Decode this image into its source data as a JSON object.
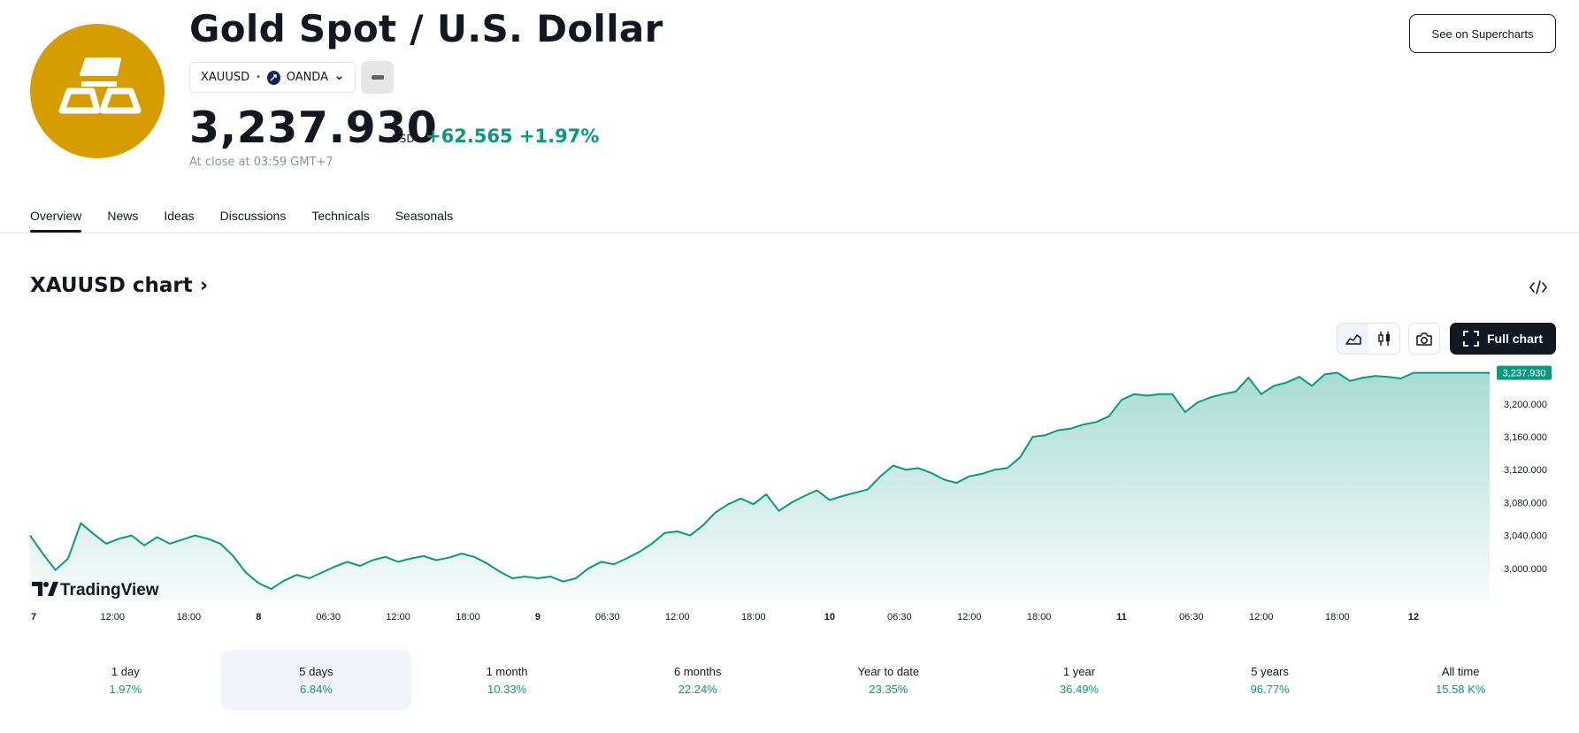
{
  "header": {
    "title": "Gold Spot / U.S. Dollar",
    "symbol": "XAUUSD",
    "exchange": "OANDA",
    "price": "3,237.930",
    "currency": "USD",
    "change_abs": "+62.565",
    "change_pct": "+1.97%",
    "close_note": "At close at 03:59 GMT+7",
    "supercharts_label": "See on Supercharts",
    "logo_color": "#D79C00"
  },
  "tabs": [
    {
      "label": "Overview",
      "active": true
    },
    {
      "label": "News"
    },
    {
      "label": "Ideas"
    },
    {
      "label": "Discussions"
    },
    {
      "label": "Technicals"
    },
    {
      "label": "Seasonals"
    }
  ],
  "chart_section": {
    "heading": "XAUUSD chart",
    "full_chart_label": "Full chart",
    "watermark": "TradingView"
  },
  "chart_data": {
    "type": "area",
    "line_color": "#089981",
    "last_value_label": "3,237.930",
    "last_value": 3237.93,
    "y_ticks": [
      "3,200.000",
      "3,160.000",
      "3,120.000",
      "3,080.000",
      "3,040.000",
      "3,000.000"
    ],
    "y_tick_values": [
      3200,
      3160,
      3120,
      3080,
      3040,
      3000
    ],
    "x_ticks": [
      "7",
      "12:00",
      "18:00",
      "8",
      "06:30",
      "12:00",
      "18:00",
      "9",
      "06:30",
      "12:00",
      "18:00",
      "10",
      "06:30",
      "12:00",
      "18:00",
      "11",
      "06:30",
      "12:00",
      "18:00",
      "12"
    ],
    "x_tick_pos": [
      0,
      1.3,
      2.5,
      3.6,
      4.7,
      5.8,
      6.9,
      8.0,
      9.1,
      10.2,
      11.4,
      12.6,
      13.7,
      14.8,
      15.9,
      17.2,
      18.3,
      19.4,
      20.6,
      21.8
    ],
    "x_range": [
      0,
      23.0
    ],
    "ylim": [
      2960,
      3245
    ],
    "x": [
      0,
      0.2,
      0.4,
      0.6,
      0.8,
      1.0,
      1.2,
      1.4,
      1.6,
      1.8,
      2.0,
      2.2,
      2.4,
      2.6,
      2.8,
      3.0,
      3.2,
      3.4,
      3.6,
      3.8,
      4.0,
      4.2,
      4.4,
      4.6,
      4.8,
      5.0,
      5.2,
      5.4,
      5.6,
      5.8,
      6.0,
      6.2,
      6.4,
      6.6,
      6.8,
      7.0,
      7.2,
      7.4,
      7.6,
      7.8,
      8.0,
      8.2,
      8.4,
      8.6,
      8.8,
      9.0,
      9.2,
      9.4,
      9.6,
      9.8,
      10.0,
      10.2,
      10.4,
      10.6,
      10.8,
      11.0,
      11.2,
      11.4,
      11.6,
      11.8,
      12.0,
      12.2,
      12.4,
      12.6,
      12.8,
      13.0,
      13.2,
      13.4,
      13.6,
      13.8,
      14.0,
      14.2,
      14.4,
      14.6,
      14.8,
      15.0,
      15.2,
      15.4,
      15.6,
      15.8,
      16.0,
      16.2,
      16.4,
      16.6,
      16.8,
      17.0,
      17.2,
      17.4,
      17.6,
      17.8,
      18.0,
      18.2,
      18.4,
      18.6,
      18.8,
      19.0,
      19.2,
      19.4,
      19.6,
      19.8,
      20.0,
      20.2,
      20.4,
      20.6,
      20.8,
      21.0,
      21.2,
      21.4,
      21.6,
      21.8,
      22.0,
      22.2,
      22.4,
      22.6,
      22.8,
      23.0
    ],
    "y": [
      3040,
      3018,
      2998,
      3012,
      3055,
      3042,
      3030,
      3036,
      3040,
      3028,
      3038,
      3030,
      3035,
      3040,
      3036,
      3030,
      3015,
      2995,
      2982,
      2975,
      2985,
      2992,
      2988,
      2995,
      3002,
      3008,
      3003,
      3010,
      3014,
      3008,
      3012,
      3015,
      3010,
      3013,
      3018,
      3014,
      3006,
      2996,
      2988,
      2990,
      2988,
      2990,
      2984,
      2988,
      3000,
      3008,
      3005,
      3012,
      3020,
      3030,
      3043,
      3045,
      3040,
      3052,
      3068,
      3078,
      3085,
      3078,
      3090,
      3070,
      3080,
      3088,
      3095,
      3083,
      3088,
      3092,
      3096,
      3112,
      3125,
      3120,
      3122,
      3116,
      3108,
      3104,
      3112,
      3115,
      3120,
      3122,
      3135,
      3160,
      3162,
      3168,
      3170,
      3175,
      3178,
      3185,
      3205,
      3212,
      3210,
      3212,
      3212,
      3190,
      3202,
      3208,
      3212,
      3215,
      3232,
      3212,
      3222,
      3226,
      3233,
      3222,
      3236,
      3238,
      3228,
      3232,
      3234,
      3233,
      3231,
      3237.93,
      3237.93,
      3237.93,
      3237.93,
      3237.93,
      3237.93,
      3237.93
    ]
  },
  "periods": [
    {
      "label": "1 day",
      "value": "1.97%"
    },
    {
      "label": "5 days",
      "value": "6.84%",
      "active": true
    },
    {
      "label": "1 month",
      "value": "10.33%"
    },
    {
      "label": "6 months",
      "value": "22.24%"
    },
    {
      "label": "Year to date",
      "value": "23.35%"
    },
    {
      "label": "1 year",
      "value": "36.49%"
    },
    {
      "label": "5 years",
      "value": "96.77%"
    },
    {
      "label": "All time",
      "value": "15.58 K%"
    }
  ]
}
